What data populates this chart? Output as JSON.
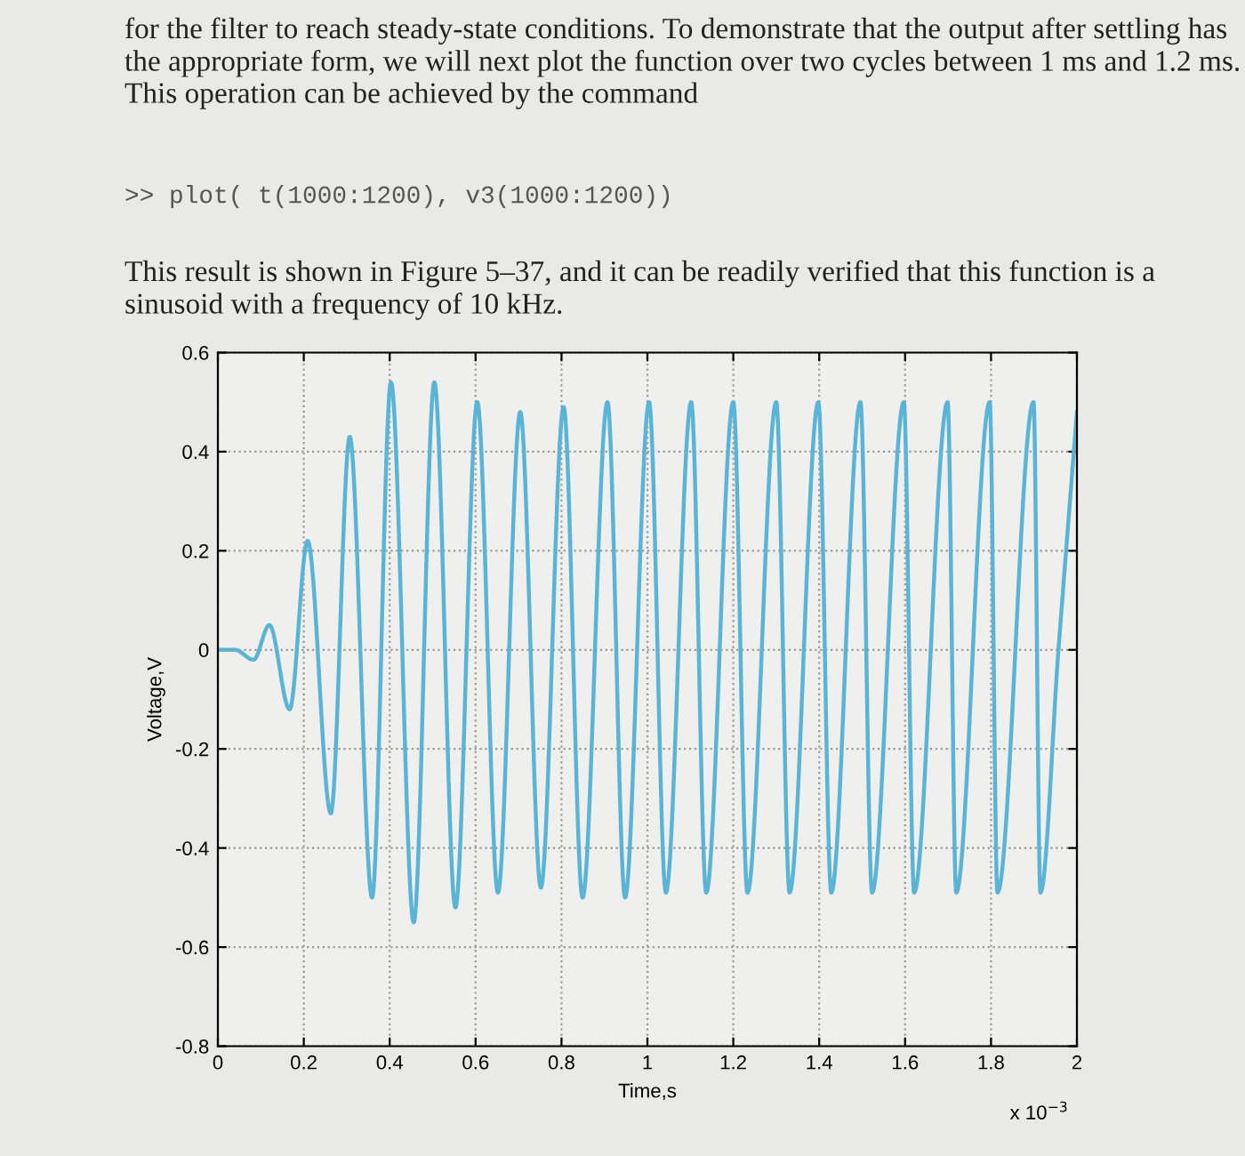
{
  "chart_data": {
    "type": "line",
    "xlabel": "Time,s",
    "ylabel": "Voltage,V",
    "annotations": [
      "x 10$^{−3}$",
      "for the filter to reach steady-state conditions. To demonstrate that the output after settling has the appropriate form, we will next plot the function over two cycles between 1 ms and 1.2 ms. This operation can be achieved by the command",
      ">> plot( t(1000:1200), v3(1000:1200))",
      "This result is shown in Figure 5–37, and it can be readily verified that this function is a sinusoid with a frequency of 10 kHz."
    ],
    "series": [
      {
        "color": "#5ab4d6",
        "x": [
          0,
          0.04,
          0.083,
          0.12,
          0.167,
          0.209,
          0.263,
          0.307,
          0.359,
          0.403,
          0.456,
          0.504,
          0.553,
          0.604,
          0.652,
          0.704,
          0.752,
          0.805,
          0.849,
          0.907,
          0.948,
          1.004,
          1.043,
          1.102,
          1.137,
          1.2,
          1.233,
          1.3,
          1.331,
          1.398,
          1.428,
          1.496,
          1.523,
          1.597,
          1.621,
          1.699,
          1.719,
          1.797,
          1.815,
          1.899,
          1.915,
          1.957,
          2.0
        ],
        "values": [
          0,
          0,
          -0.02,
          0.05,
          -0.12,
          0.22,
          -0.33,
          0.43,
          -0.5,
          0.54,
          -0.55,
          0.54,
          -0.52,
          0.5,
          -0.49,
          0.48,
          -0.48,
          0.49,
          -0.5,
          0.5,
          -0.5,
          0.5,
          -0.49,
          0.5,
          -0.49,
          0.5,
          -0.49,
          0.5,
          -0.49,
          0.5,
          -0.49,
          0.5,
          -0.49,
          0.5,
          -0.49,
          0.5,
          -0.49,
          0.5,
          -0.49,
          0.5,
          -0.49,
          0,
          0.48
        ]
      }
    ],
    "xlim": [
      0,
      2
    ],
    "xticks": [
      0,
      0.2,
      0.4,
      0.6,
      0.8,
      1,
      1.2,
      1.4,
      1.6,
      1.8,
      2
    ],
    "ylim": [
      -0.8,
      0.6
    ],
    "yticks": [
      -0.8,
      -0.6,
      -0.4,
      -0.2,
      0,
      0.2,
      0.4,
      0.6
    ],
    "grid": true,
    "marker": "none",
    "line_style": "solid"
  }
}
